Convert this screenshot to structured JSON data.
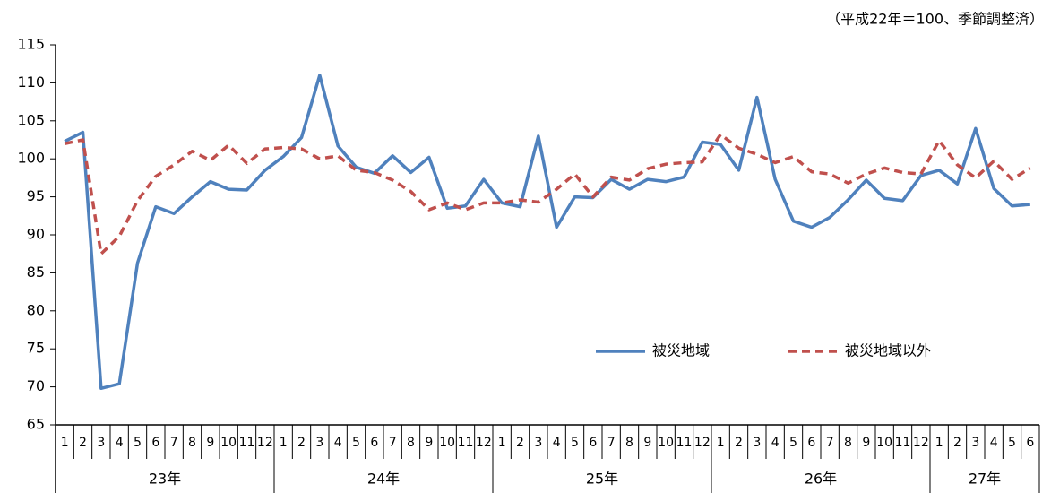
{
  "chart_data": {
    "type": "line",
    "note": "（平成22年＝100、季節調整済）",
    "groups": [
      {
        "label": "23年",
        "months": [
          "1",
          "2",
          "3",
          "4",
          "5",
          "6",
          "7",
          "8",
          "9",
          "10",
          "11",
          "12"
        ]
      },
      {
        "label": "24年",
        "months": [
          "1",
          "2",
          "3",
          "4",
          "5",
          "6",
          "7",
          "8",
          "9",
          "10",
          "11",
          "12"
        ]
      },
      {
        "label": "25年",
        "months": [
          "1",
          "2",
          "3",
          "4",
          "5",
          "6",
          "7",
          "8",
          "9",
          "10",
          "11",
          "12"
        ]
      },
      {
        "label": "26年",
        "months": [
          "1",
          "2",
          "3",
          "4",
          "5",
          "6",
          "7",
          "8",
          "9",
          "10",
          "11",
          "12"
        ]
      },
      {
        "label": "27年",
        "months": [
          "1",
          "2",
          "3",
          "4",
          "5",
          "6"
        ]
      }
    ],
    "series": [
      {
        "name": "被災地域",
        "color": "#4f81bd",
        "dash": false,
        "values": [
          102.3,
          103.5,
          69.8,
          70.4,
          86.3,
          93.7,
          92.8,
          95,
          97,
          96,
          95.9,
          98.5,
          100.3,
          102.8,
          111,
          101.7,
          98.9,
          98.1,
          100.4,
          98.2,
          100.2,
          93.5,
          93.8,
          97.3,
          94.2,
          93.7,
          103,
          91,
          95,
          94.9,
          97.3,
          96,
          97.3,
          97,
          97.6,
          102.2,
          101.9,
          98.5,
          108.1,
          97.3,
          91.8,
          91,
          92.3,
          94.6,
          97.2,
          94.8,
          94.5,
          97.8,
          98.5,
          96.7,
          104,
          96.1,
          93.8,
          94
        ]
      },
      {
        "name": "被災地域以外",
        "color": "#c0504d",
        "dash": true,
        "values": [
          102,
          102.5,
          87.5,
          89.8,
          94.5,
          97.7,
          99.2,
          101,
          99.8,
          101.8,
          99.4,
          101.3,
          101.5,
          101.3,
          100,
          100.4,
          98.5,
          98.2,
          97.2,
          95.7,
          93.3,
          94.2,
          93.3,
          94.2,
          94.2,
          94.6,
          94.3,
          96,
          98,
          95,
          97.6,
          97.2,
          98.7,
          99.3,
          99.5,
          99.6,
          103.2,
          101.4,
          100.6,
          99.5,
          100.3,
          98.3,
          98,
          96.8,
          98,
          98.8,
          98.2,
          98,
          102.4,
          99.2,
          97.5,
          99.7,
          97.3,
          98.8
        ]
      }
    ],
    "ylim": [
      65,
      115
    ],
    "yticks": [
      65,
      70,
      75,
      80,
      85,
      90,
      95,
      100,
      105,
      110,
      115
    ],
    "grid": false,
    "legend": "lower right"
  }
}
